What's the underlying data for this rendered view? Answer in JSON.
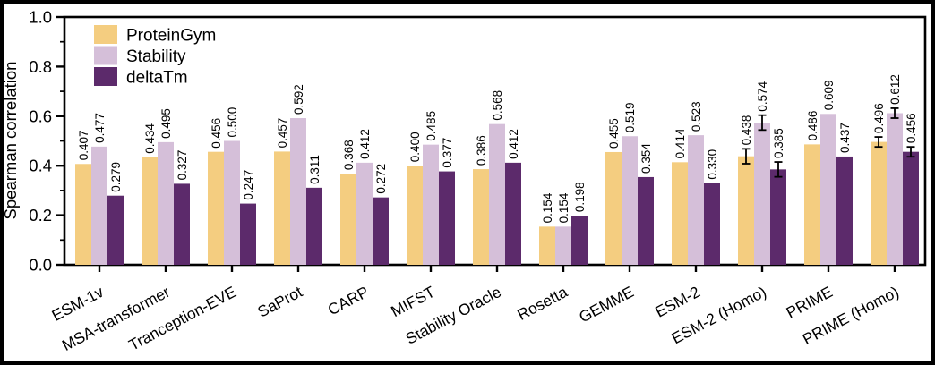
{
  "figure": {
    "background": "#ffffff",
    "border_color": "#000000"
  },
  "chart_data": {
    "type": "bar",
    "title": "",
    "xlabel": "",
    "ylabel": "Spearman correlation",
    "ylim": [
      0.0,
      1.0
    ],
    "yticks": [
      0.0,
      0.2,
      0.4,
      0.6,
      0.8,
      1.0
    ],
    "y_minor_tick_step": 0.1,
    "grid": false,
    "legend_position": "upper-left",
    "value_label_rotation": 90,
    "value_label_decimals": 3,
    "categories": [
      "ESM-1v",
      "MSA-transformer",
      "Tranception-EVE",
      "SaProt",
      "CARP",
      "MIFST",
      "Stability Oracle",
      "Rosetta",
      "GEMME",
      "ESM-2",
      "ESM-2 (Homo)",
      "PRIME",
      "PRIME (Homo)"
    ],
    "series": [
      {
        "name": "ProteinGym",
        "color": "#F4CD80",
        "values": [
          0.407,
          0.434,
          0.456,
          0.457,
          0.368,
          0.4,
          0.386,
          0.154,
          0.455,
          0.414,
          0.438,
          0.486,
          0.496
        ],
        "errors": [
          null,
          null,
          null,
          null,
          null,
          null,
          null,
          null,
          null,
          null,
          0.03,
          null,
          0.02
        ]
      },
      {
        "name": "Stability",
        "color": "#D5BFD9",
        "values": [
          0.477,
          0.495,
          0.5,
          0.592,
          0.412,
          0.485,
          0.568,
          0.154,
          0.519,
          0.523,
          0.574,
          0.609,
          0.612
        ],
        "errors": [
          null,
          null,
          null,
          null,
          null,
          null,
          null,
          null,
          null,
          null,
          0.03,
          null,
          0.02
        ]
      },
      {
        "name": "deltaTm",
        "color": "#5C2A6B",
        "values": [
          0.279,
          0.327,
          0.247,
          0.311,
          0.272,
          0.377,
          0.412,
          0.198,
          0.354,
          0.33,
          0.385,
          0.437,
          0.456
        ],
        "errors": [
          null,
          null,
          null,
          null,
          null,
          null,
          null,
          null,
          null,
          null,
          0.03,
          null,
          0.02
        ]
      }
    ]
  }
}
